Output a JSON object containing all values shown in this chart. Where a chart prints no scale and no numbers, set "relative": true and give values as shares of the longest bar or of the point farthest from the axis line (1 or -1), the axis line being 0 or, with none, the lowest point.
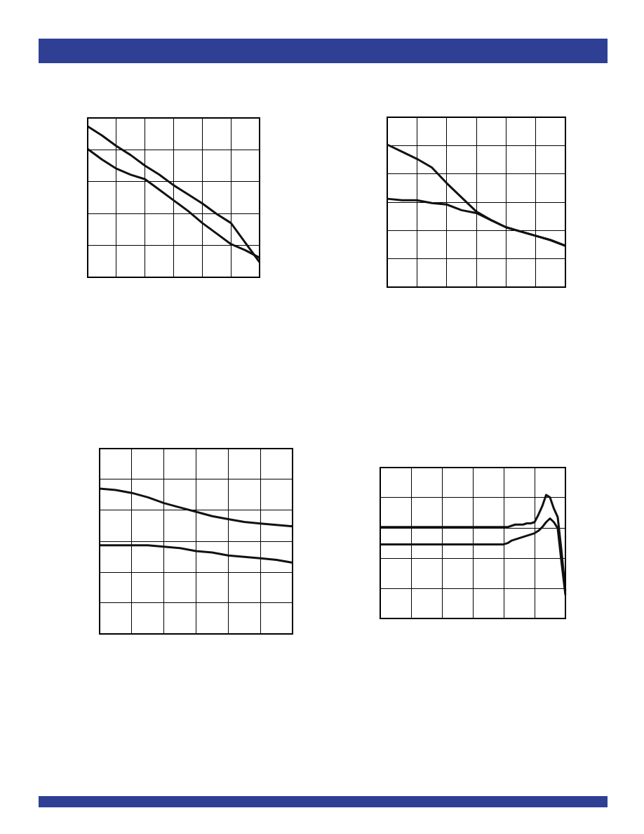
{
  "chart_data": [
    {
      "type": "line",
      "relative": true,
      "grid": true,
      "marker": "none",
      "categories": [
        null,
        null,
        null,
        null,
        null,
        null,
        null,
        null,
        null,
        null,
        null,
        null,
        null
      ],
      "series": [
        {
          "color": "#111111",
          "values": [
            1,
            0.94,
            0.87,
            0.81,
            0.74,
            0.68,
            0.61,
            0.55,
            0.49,
            0.42,
            0.36,
            0.23,
            0.1
          ]
        },
        {
          "color": "#111111",
          "values": [
            0.85,
            0.78,
            0.72,
            0.68,
            0.65,
            0.58,
            0.51,
            0.44,
            0.36,
            0.29,
            0.22,
            0.18,
            0.13
          ]
        }
      ]
    },
    {
      "type": "line",
      "relative": true,
      "grid": true,
      "marker": "none",
      "categories": [
        null,
        null,
        null,
        null,
        null,
        null,
        null,
        null,
        null,
        null,
        null,
        null,
        null
      ],
      "series": [
        {
          "color": "#111111",
          "values": [
            1,
            0.95,
            0.9,
            0.84,
            0.73,
            0.63,
            0.53,
            0.47,
            0.42,
            0.39,
            0.36,
            0.33,
            0.29
          ]
        },
        {
          "color": "#111111",
          "values": [
            0.62,
            0.61,
            0.61,
            0.59,
            0.58,
            0.54,
            0.52,
            0.47,
            0.42,
            0.39,
            0.36,
            0.33,
            0.29
          ]
        }
      ]
    },
    {
      "type": "line",
      "relative": true,
      "grid": true,
      "marker": "none",
      "categories": [
        null,
        null,
        null,
        null,
        null,
        null,
        null,
        null,
        null,
        null,
        null,
        null,
        null
      ],
      "series": [
        {
          "color": "#111111",
          "values": [
            1,
            0.99,
            0.97,
            0.94,
            0.9,
            0.87,
            0.84,
            0.81,
            0.79,
            0.77,
            0.76,
            0.75,
            0.74
          ]
        },
        {
          "color": "#111111",
          "values": [
            0.61,
            0.61,
            0.61,
            0.61,
            0.6,
            0.59,
            0.57,
            0.56,
            0.54,
            0.53,
            0.52,
            0.51,
            0.49
          ]
        }
      ]
    },
    {
      "type": "line",
      "relative": true,
      "grid": true,
      "marker": "none",
      "categories": [
        null,
        null,
        null,
        null,
        null,
        null,
        null,
        null,
        null,
        null,
        null,
        null,
        null,
        null,
        null,
        null,
        null,
        null,
        null,
        null,
        null,
        null,
        null,
        null,
        null,
        null,
        null,
        null,
        null,
        null,
        null,
        null,
        null,
        null,
        null,
        null,
        null,
        null,
        null,
        null,
        null,
        null,
        null,
        null,
        null,
        null,
        null,
        null,
        null
      ],
      "series": [
        {
          "color": "#111111",
          "values": [
            0.74,
            0.74,
            0.74,
            0.74,
            0.74,
            0.74,
            0.74,
            0.74,
            0.74,
            0.74,
            0.74,
            0.74,
            0.74,
            0.74,
            0.74,
            0.74,
            0.74,
            0.74,
            0.74,
            0.74,
            0.74,
            0.74,
            0.74,
            0.74,
            0.74,
            0.74,
            0.74,
            0.74,
            0.74,
            0.74,
            0.74,
            0.74,
            0.74,
            0.74,
            0.75,
            0.76,
            0.76,
            0.76,
            0.77,
            0.77,
            0.78,
            0.84,
            0.91,
            1,
            0.98,
            0.89,
            0.82,
            0.54,
            0.22
          ]
        },
        {
          "color": "#111111",
          "values": [
            0.6,
            0.6,
            0.6,
            0.6,
            0.6,
            0.6,
            0.6,
            0.6,
            0.6,
            0.6,
            0.6,
            0.6,
            0.6,
            0.6,
            0.6,
            0.6,
            0.6,
            0.6,
            0.6,
            0.6,
            0.6,
            0.6,
            0.6,
            0.6,
            0.6,
            0.6,
            0.6,
            0.6,
            0.6,
            0.6,
            0.6,
            0.6,
            0.6,
            0.61,
            0.63,
            0.64,
            0.65,
            0.66,
            0.67,
            0.68,
            0.69,
            0.71,
            0.74,
            0.78,
            0.81,
            0.78,
            0.73,
            0.45,
            0.19
          ]
        }
      ]
    }
  ]
}
